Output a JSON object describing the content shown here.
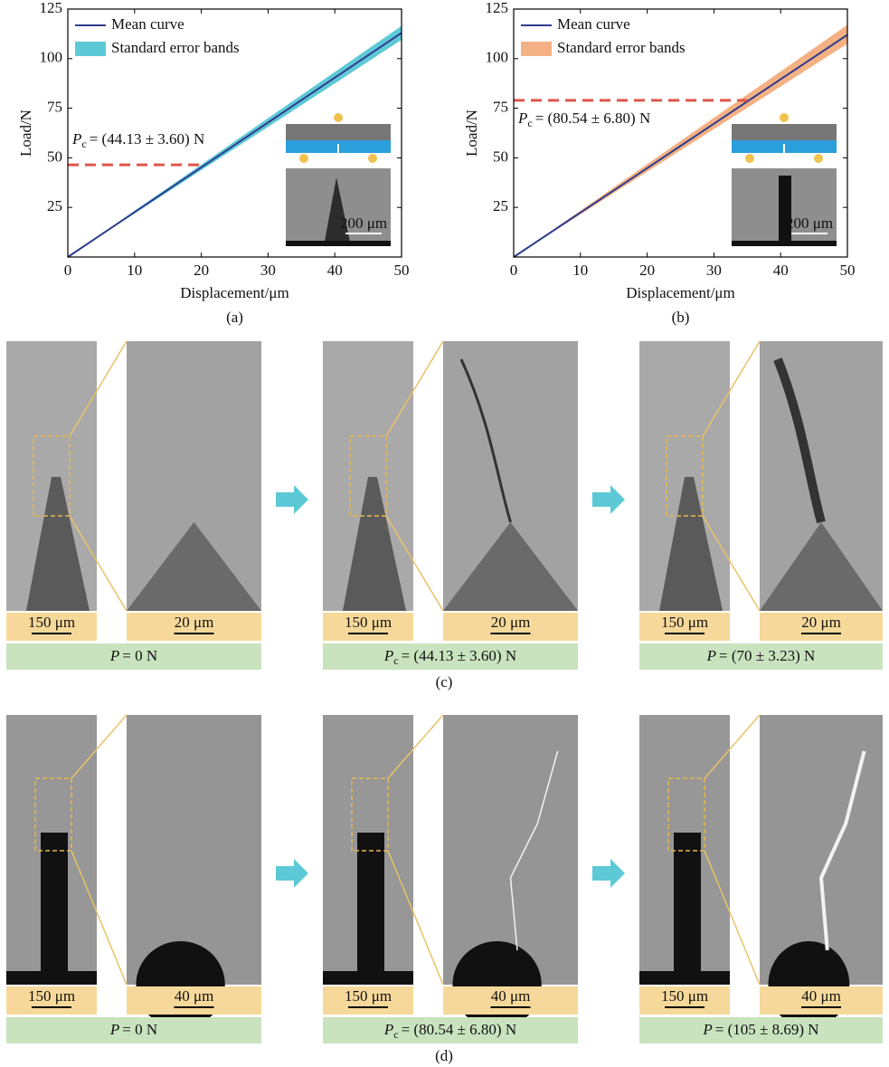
{
  "chart_data": [
    {
      "type": "line",
      "x_label": "Displacement/μm",
      "y_label": "Load/N",
      "caption": "(a)",
      "x": [
        0,
        10,
        20,
        30,
        40,
        50
      ],
      "series": [
        {
          "name": "Mean curve",
          "color": "#2e3d8f",
          "values": [
            0,
            22.6,
            45.2,
            67.8,
            90.4,
            113
          ]
        },
        {
          "name": "Standard error bands",
          "color": "#5ec9d6",
          "lower": [
            0,
            21.9,
            43.8,
            65.6,
            87.5,
            109.5
          ],
          "upper": [
            0,
            23.3,
            46.6,
            70,
            93.3,
            116.5
          ]
        }
      ],
      "threshold": {
        "value": 46.5,
        "x_end": 20,
        "color": "#e0564c"
      },
      "annotation": {
        "symbol": "P",
        "subscript": "c",
        "text": "= (44.13 ± 3.60) N"
      },
      "inset_scale_label": "200 μm",
      "xlim": [
        0,
        50
      ],
      "ylim": [
        0,
        125
      ],
      "xticks": [
        0,
        10,
        20,
        30,
        40,
        50
      ],
      "yticks": [
        25,
        50,
        75,
        100,
        125
      ],
      "legend": "upper left"
    },
    {
      "type": "line",
      "x_label": "Displacement/μm",
      "y_label": "Load/N",
      "caption": "(b)",
      "x": [
        0,
        10,
        20,
        30,
        40,
        50
      ],
      "series": [
        {
          "name": "Mean curve",
          "color": "#2e3d8f",
          "values": [
            0,
            22.4,
            44.8,
            67.2,
            89.6,
            112
          ]
        },
        {
          "name": "Standard error bands",
          "color": "#f4b183",
          "lower": [
            0,
            21.5,
            43,
            64.5,
            86,
            107.5
          ],
          "upper": [
            0,
            23.4,
            46.8,
            70.2,
            93.6,
            117
          ]
        }
      ],
      "threshold": {
        "value": 79,
        "x_end": 35,
        "color": "#e0564c"
      },
      "annotation": {
        "symbol": "P",
        "subscript": "c",
        "text": "= (80.54 ± 6.80) N"
      },
      "inset_scale_label": "200 μm",
      "xlim": [
        0,
        50
      ],
      "ylim": [
        0,
        125
      ],
      "xticks": [
        0,
        10,
        20,
        30,
        40,
        50
      ],
      "yticks": [
        25,
        50,
        75,
        100,
        125
      ],
      "legend": "upper left"
    }
  ],
  "panels": [
    {
      "caption": "(c)",
      "stages": [
        {
          "scale_left": "150 μm",
          "scale_right": "20 μm",
          "load": {
            "symbol": "P",
            "text": "= 0 N"
          }
        },
        {
          "scale_left": "150 μm",
          "scale_right": "20 μm",
          "load": {
            "symbol": "P",
            "subscript": "c",
            "text": "= (44.13 ± 3.60) N"
          }
        },
        {
          "scale_left": "150 μm",
          "scale_right": "20 μm",
          "load": {
            "symbol": "P",
            "text": "= (70 ± 3.23) N"
          }
        }
      ]
    },
    {
      "caption": "(d)",
      "stages": [
        {
          "scale_left": "150 μm",
          "scale_right": "40 μm",
          "load": {
            "symbol": "P",
            "text": "= 0 N"
          }
        },
        {
          "scale_left": "150 μm",
          "scale_right": "40 μm",
          "load": {
            "symbol": "P",
            "subscript": "c",
            "text": "= (80.54 ± 6.80) N"
          }
        },
        {
          "scale_left": "150 μm",
          "scale_right": "40 μm",
          "load": {
            "symbol": "P",
            "text": "= (105 ± 8.69) N"
          }
        }
      ]
    }
  ]
}
